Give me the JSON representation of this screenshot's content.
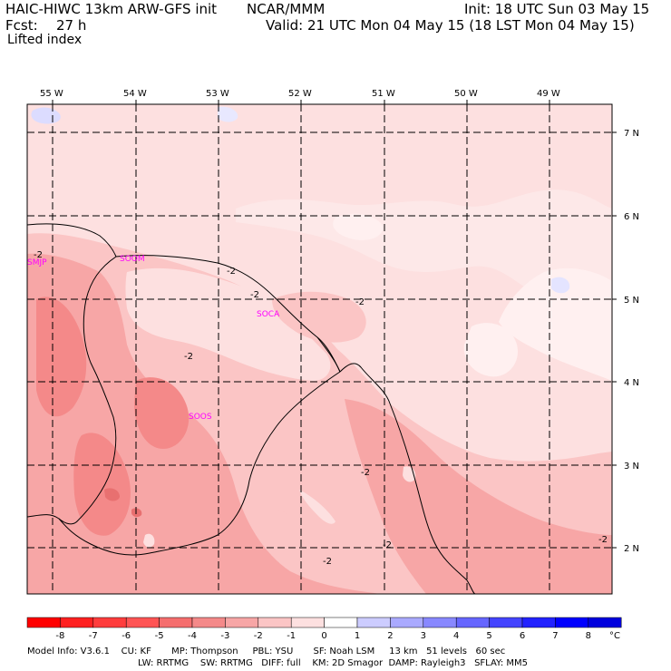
{
  "header": {
    "model": "HAIC-HIWC 13km ARW-GFS init",
    "org": "NCAR/MMM",
    "init": "Init: 18 UTC Sun 03 May 15",
    "fcst_label": "Fcst:",
    "fcst_value": "27 h",
    "valid": "Valid: 21 UTC Mon 04 May 15 (18 LST Mon 04 May 15)",
    "field": "Lifted index"
  },
  "map": {
    "longitudes": [
      "55 W",
      "54 W",
      "53 W",
      "52 W",
      "51 W",
      "50 W",
      "49 W"
    ],
    "latitudes": [
      "7 N",
      "6 N",
      "5 N",
      "4 N",
      "3 N",
      "2 N"
    ],
    "stations": [
      "SMJP",
      "SOOM",
      "SOCA",
      "SOOS"
    ],
    "contour_label": "-2",
    "colors": {
      "bg": "#fde0e0",
      "light": "#fff0f0",
      "mid": "#fbb8b8",
      "dark": "#f49b9b",
      "darkest": "#e88080",
      "blue": "#dcdcff"
    }
  },
  "colorbar": {
    "ticks": [
      "-8",
      "-7",
      "-6",
      "-5",
      "-4",
      "-3",
      "-2",
      "-1",
      "0",
      "1",
      "2",
      "3",
      "4",
      "5",
      "6",
      "7",
      "8"
    ],
    "unit": "°C",
    "colors": [
      "#ff0000",
      "#ff2020",
      "#ff3c3c",
      "#ff5454",
      "#f56e6e",
      "#f48989",
      "#f7a6a6",
      "#fbc5c5",
      "#fde0e0",
      "#ffffff",
      "#ccccff",
      "#aaaaff",
      "#8888ff",
      "#6666ff",
      "#4444ff",
      "#2222ff",
      "#0000ff",
      "#0000dd"
    ]
  },
  "footer": {
    "line1": "Model Info: V3.6.1    CU: KF       MP: Thompson     PBL: YSU       SF: Noah LSM     13 km   51 levels   60 sec",
    "line2": "LW: RRTMG    SW: RRTMG   DIFF: full    KM: 2D Smagor  DAMP: Rayleigh3   SFLAY: MM5"
  }
}
